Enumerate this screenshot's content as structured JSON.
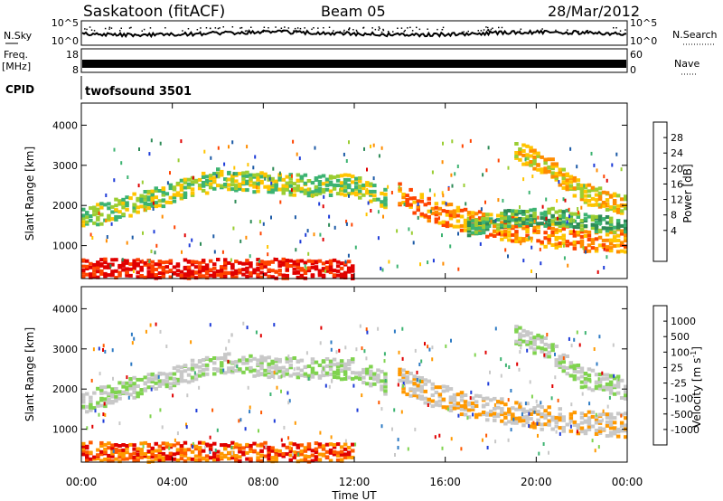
{
  "header": {
    "site": "Saskatoon (fitACF)",
    "beam": "Beam 05",
    "date": "28/Mar/2012"
  },
  "strip_panels": {
    "nsky_label": "N.Sky",
    "nsky_ticks": [
      "10^5",
      "10^0"
    ],
    "nsearch_label": "N.Search",
    "nsearch_ticks": [
      "10^5",
      "10^0"
    ],
    "freq_label_top": "Freq.",
    "freq_label_bottom": "[MHz]",
    "freq_ticks": [
      "18",
      "8"
    ],
    "nave_label": "Nave",
    "nave_ticks": [
      "60",
      "0"
    ],
    "cpid_label": "CPID",
    "cpid_value": "twofsound 3501"
  },
  "chart_data": [
    {
      "type": "heatmap",
      "panel": "power",
      "ylabel": "Slant Range [km]",
      "yticks": [
        "4000",
        "3000",
        "2000",
        "1000"
      ],
      "ylim": [
        180,
        4550
      ],
      "xlim": [
        0,
        24
      ],
      "colorbar_label": "Power [dB]",
      "colorbar_ticks": [
        "28",
        "24",
        "20",
        "16",
        "12",
        "8",
        "4"
      ],
      "colors": [
        "#e00000",
        "#ff4400",
        "#ff8c00",
        "#ffc400",
        "#9acd32",
        "#3cb371",
        "#2e8b57",
        "#1c5aa6",
        "#1e3cd8"
      ],
      "bands": [
        {
          "t": [
            0,
            4,
            6,
            8,
            10,
            12,
            13.5
          ],
          "r": [
            1650,
            2300,
            2650,
            2550,
            2500,
            2500,
            2100
          ],
          "w": 220,
          "level": 4
        },
        {
          "t": [
            14,
            15.5,
            17,
            18.5,
            20,
            22,
            24
          ],
          "r": [
            2250,
            1850,
            1600,
            1450,
            1300,
            1150,
            1100
          ],
          "w": 260,
          "level": 2
        },
        {
          "t": [
            17,
            19,
            21,
            22.5,
            24
          ],
          "r": [
            1450,
            1700,
            1700,
            1550,
            1450
          ],
          "w": 180,
          "level": 5
        },
        {
          "t": [
            19,
            20.5,
            22,
            24
          ],
          "r": [
            3400,
            3000,
            2300,
            2000
          ],
          "w": 220,
          "level": 3
        },
        {
          "t": [
            0,
            2,
            4,
            6,
            8,
            10,
            12
          ],
          "r": [
            450,
            420,
            420,
            430,
            420,
            420,
            380
          ],
          "w": 200,
          "level": 0
        }
      ]
    },
    {
      "type": "heatmap",
      "panel": "velocity",
      "xlabel": "Time UT",
      "xticks": [
        "00:00",
        "04:00",
        "08:00",
        "12:00",
        "16:00",
        "20:00",
        "00:00"
      ],
      "ylabel": "Slant Range [km]",
      "yticks": [
        "4000",
        "3000",
        "2000",
        "1000"
      ],
      "ylim": [
        180,
        4550
      ],
      "xlim": [
        0,
        24
      ],
      "colorbar_label": "Velocity [m s",
      "colorbar_label_sup": "-1",
      "colorbar_ticks": [
        "1000",
        "500",
        "100",
        "25",
        "-25",
        "-100",
        "-500",
        "-1000"
      ],
      "colors": [
        "#1e3cd8",
        "#2e7bc4",
        "#3cb371",
        "#7fd34e",
        "#c8c8c8",
        "#c8c8c8",
        "#ff9900",
        "#ff5a00",
        "#e00000"
      ],
      "bands": [
        {
          "t": [
            0,
            4,
            6,
            8,
            10,
            12,
            13.5
          ],
          "r": [
            1650,
            2300,
            2650,
            2550,
            2500,
            2500,
            2100
          ],
          "w": 220,
          "level": 4
        },
        {
          "t": [
            14,
            15.5,
            17,
            18.5,
            20,
            22,
            24
          ],
          "r": [
            2250,
            1850,
            1600,
            1450,
            1300,
            1150,
            1100
          ],
          "w": 260,
          "level": 5
        },
        {
          "t": [
            19,
            20.5,
            22,
            24
          ],
          "r": [
            3400,
            3000,
            2300,
            2000
          ],
          "w": 220,
          "level": 4
        },
        {
          "t": [
            0,
            2,
            4,
            6,
            8,
            10,
            12
          ],
          "r": [
            450,
            420,
            420,
            430,
            420,
            420,
            380
          ],
          "w": 200,
          "level": 7
        }
      ]
    }
  ]
}
